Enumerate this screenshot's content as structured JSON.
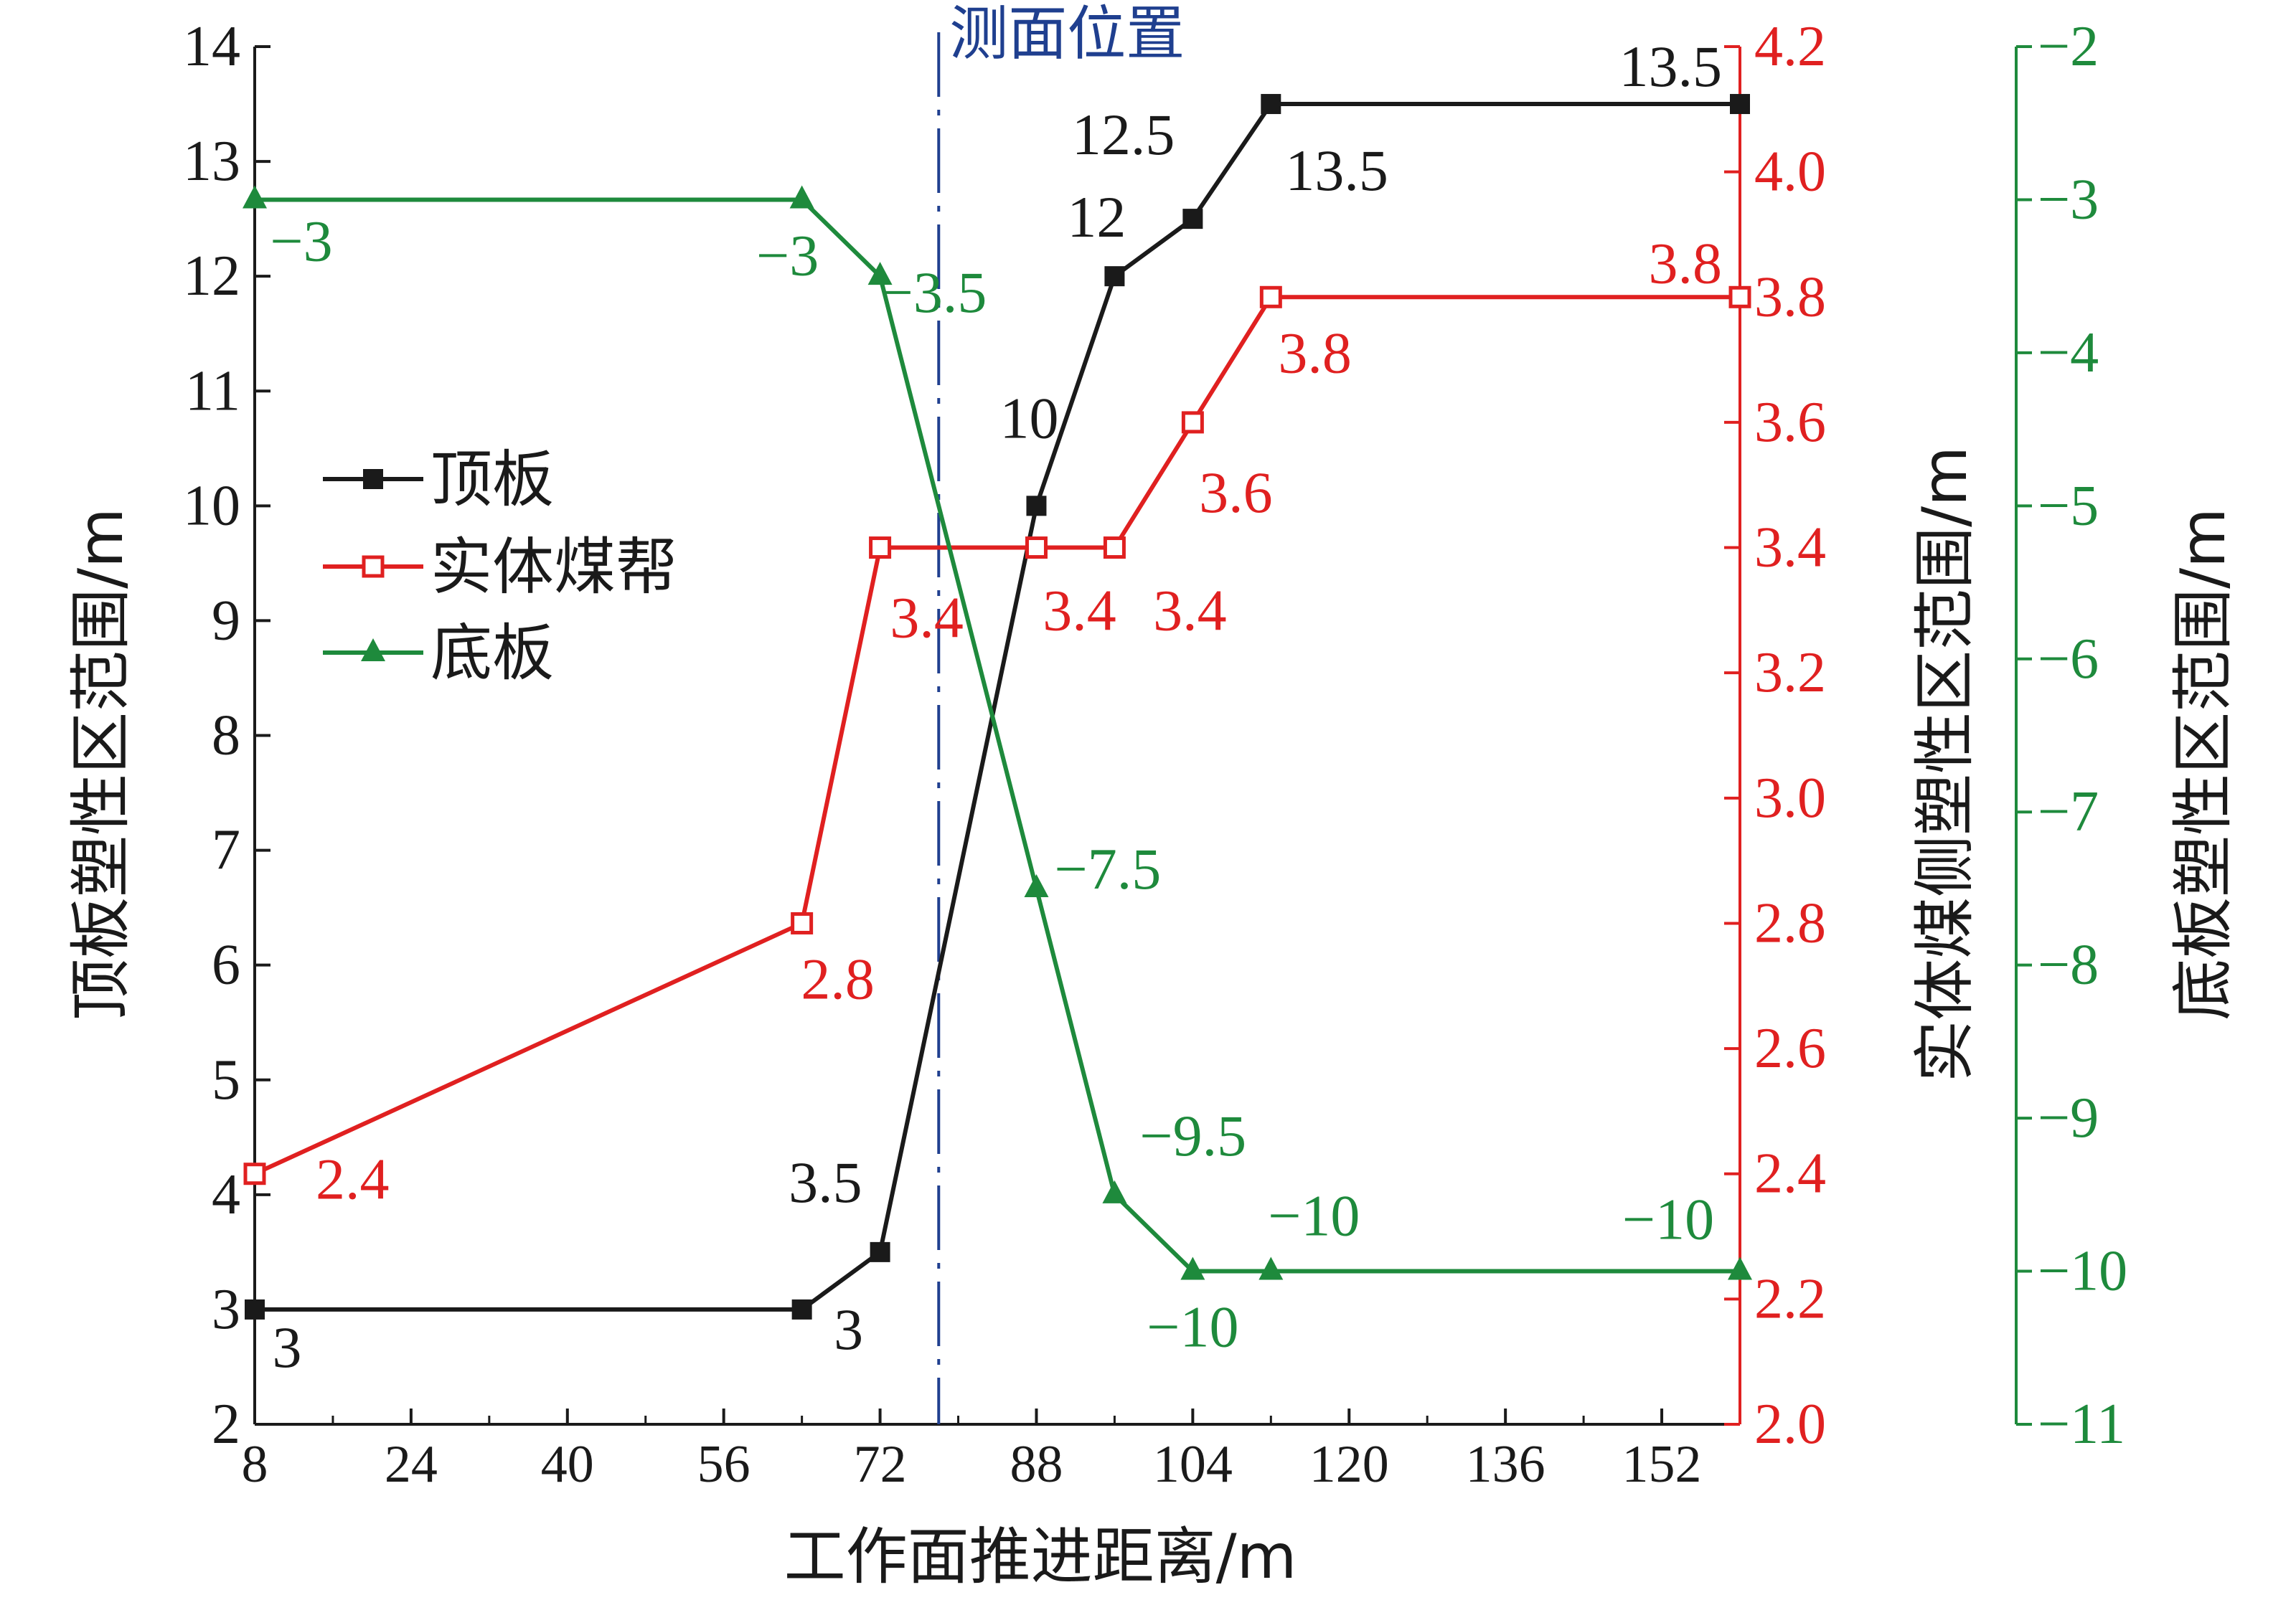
{
  "chart_data": {
    "type": "line",
    "xlabel": "工作面推进距离/m",
    "x_ticks": [
      8,
      24,
      40,
      56,
      72,
      88,
      104,
      120,
      136,
      152
    ],
    "xlim": [
      8,
      160
    ],
    "annotation": "测面位置",
    "annotation_x": 78,
    "axes": {
      "left": {
        "label": "顶板塑性区范围/m",
        "lim": [
          2,
          14
        ],
        "ticks": [
          "2",
          "3",
          "4",
          "5",
          "6",
          "7",
          "8",
          "9",
          "10",
          "11",
          "12",
          "13",
          "14"
        ],
        "color": "#1a1a1a"
      },
      "right1": {
        "label": "实体煤侧塑性区范围/m",
        "lim": [
          2.0,
          4.2
        ],
        "ticks": [
          "2.0",
          "2.2",
          "2.4",
          "2.6",
          "2.8",
          "3.0",
          "3.2",
          "3.4",
          "3.6",
          "3.8",
          "4.0",
          "4.2"
        ],
        "color": "#e02020"
      },
      "right2": {
        "label": "底板塑性区范围/m",
        "lim": [
          -11,
          -2
        ],
        "ticks": [
          "−11",
          "−10",
          "−9",
          "−8",
          "−7",
          "−6",
          "−5",
          "−4",
          "−3",
          "−2"
        ],
        "color": "#1e8a3c"
      }
    },
    "series": [
      {
        "name": "顶板",
        "axis": "left",
        "color": "#1a1a1a",
        "marker": "square-filled",
        "x": [
          8,
          64,
          72,
          88,
          96,
          104,
          112,
          160
        ],
        "y": [
          3,
          3,
          3.5,
          10,
          12,
          12.5,
          13.5,
          13.5
        ],
        "labels": [
          "3",
          "3",
          "3.5",
          "10",
          "12",
          "12.5",
          "13.5",
          "13.5"
        ]
      },
      {
        "name": "实体煤帮",
        "axis": "right1",
        "color": "#e02020",
        "marker": "square-open",
        "x": [
          8,
          64,
          72,
          88,
          96,
          104,
          112,
          160
        ],
        "y": [
          2.4,
          2.8,
          3.4,
          3.4,
          3.4,
          3.6,
          3.8,
          3.8
        ],
        "labels": [
          "2.4",
          "2.8",
          "3.4",
          "3.4",
          "3.4",
          "3.6",
          "3.8",
          "3.8"
        ]
      },
      {
        "name": "底板",
        "axis": "right2",
        "color": "#1e8a3c",
        "marker": "triangle-filled",
        "x": [
          8,
          64,
          72,
          88,
          96,
          104,
          112,
          160
        ],
        "y": [
          -3,
          -3,
          -3.5,
          -7.5,
          -9.5,
          -10,
          -10,
          -10
        ],
        "labels": [
          "−3",
          "−3",
          "−3.5",
          "−7.5",
          "−9.5",
          "−10",
          "−10",
          "−10"
        ]
      }
    ],
    "legend_position": "middle-left"
  }
}
